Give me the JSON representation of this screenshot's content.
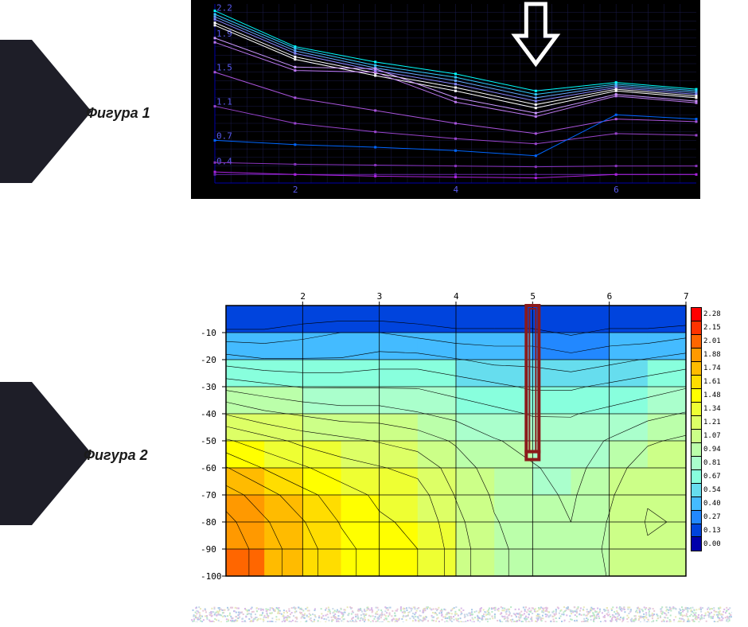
{
  "figure1": {
    "label": "Фигура 1",
    "type": "line",
    "background_color": "#000000",
    "grid_color": "#1a1a4a",
    "axis_color": "#0000aa",
    "text_color": "#5a5af0",
    "xlim": [
      1,
      7
    ],
    "x_ticks": [
      2,
      4,
      6
    ],
    "y_ticks_labels": [
      "0.4",
      "0.7",
      "1.1",
      "1.5",
      "1.9",
      "2.2"
    ],
    "y_ticks_values": [
      0.4,
      0.7,
      1.1,
      1.5,
      1.9,
      2.2
    ],
    "ylim": [
      0.2,
      2.3
    ],
    "arrow_marker_x": 5,
    "series_colors": [
      "#00ffff",
      "#33ccff",
      "#66aaff",
      "#8888ff",
      "#ffffff",
      "#ffffff",
      "#cc99ff",
      "#bb77ee",
      "#aa55dd",
      "#9944cc",
      "#8833bb",
      "#6622aa",
      "#0066ff",
      "#aa22dd"
    ],
    "series": [
      [
        2.22,
        1.8,
        1.62,
        1.48,
        1.28,
        1.38,
        1.3
      ],
      [
        2.18,
        1.78,
        1.58,
        1.44,
        1.24,
        1.36,
        1.28
      ],
      [
        2.15,
        1.75,
        1.55,
        1.4,
        1.2,
        1.34,
        1.26
      ],
      [
        2.12,
        1.72,
        1.52,
        1.36,
        1.16,
        1.32,
        1.24
      ],
      [
        2.08,
        1.68,
        1.49,
        1.32,
        1.12,
        1.3,
        1.22
      ],
      [
        2.05,
        1.65,
        1.46,
        1.28,
        1.08,
        1.28,
        1.2
      ],
      [
        1.9,
        1.56,
        1.54,
        1.2,
        1.02,
        1.24,
        1.16
      ],
      [
        1.85,
        1.52,
        1.5,
        1.15,
        0.98,
        1.22,
        1.14
      ],
      [
        1.5,
        1.2,
        1.05,
        0.9,
        0.78,
        0.95,
        0.92
      ],
      [
        1.1,
        0.9,
        0.8,
        0.72,
        0.66,
        0.78,
        0.76
      ],
      [
        0.44,
        0.42,
        0.41,
        0.4,
        0.39,
        0.4,
        0.4
      ],
      [
        0.3,
        0.3,
        0.3,
        0.3,
        0.3,
        0.3,
        0.3
      ],
      [
        0.7,
        0.65,
        0.62,
        0.58,
        0.52,
        1.0,
        0.95
      ],
      [
        0.33,
        0.3,
        0.28,
        0.27,
        0.26,
        0.3,
        0.3
      ]
    ]
  },
  "figure2": {
    "label": "Фигура 2",
    "type": "heatmap",
    "background_color": "#ffffff",
    "grid_color": "#000000",
    "xlim": [
      1,
      7
    ],
    "ylim": [
      -100,
      0
    ],
    "x_ticks": [
      2,
      3,
      4,
      5,
      6,
      7
    ],
    "y_ticks": [
      -10,
      -20,
      -30,
      -40,
      -50,
      -60,
      -70,
      -80,
      -90,
      -100
    ],
    "marker_rect_x": 5,
    "marker_rect_y1": 0,
    "marker_rect_y2": -54,
    "marker_color": "#8b1a1a",
    "legend_values": [
      2.28,
      2.15,
      2.01,
      1.88,
      1.74,
      1.61,
      1.48,
      1.34,
      1.21,
      1.07,
      0.94,
      0.81,
      0.67,
      0.54,
      0.4,
      0.27,
      0.13,
      0.0
    ],
    "legend_colors": [
      "#ff0000",
      "#ff3300",
      "#ff6600",
      "#ff9900",
      "#ffbb00",
      "#ffdd00",
      "#ffff00",
      "#eeff33",
      "#ddff66",
      "#ccff88",
      "#bbffaa",
      "#aaffcc",
      "#88ffdd",
      "#66ddee",
      "#44bbff",
      "#2288ff",
      "#0044dd",
      "#0000aa"
    ],
    "grid": [
      [
        0.05,
        0.05,
        0.1,
        0.1,
        0.1,
        0.1,
        0.1,
        0.1,
        0.1,
        0.1,
        0.1,
        0.1,
        0.05
      ],
      [
        0.3,
        0.3,
        0.35,
        0.4,
        0.4,
        0.35,
        0.3,
        0.3,
        0.3,
        0.25,
        0.3,
        0.3,
        0.35
      ],
      [
        0.6,
        0.55,
        0.55,
        0.55,
        0.6,
        0.6,
        0.55,
        0.5,
        0.5,
        0.45,
        0.5,
        0.55,
        0.6
      ],
      [
        0.9,
        0.85,
        0.8,
        0.8,
        0.8,
        0.8,
        0.75,
        0.7,
        0.65,
        0.65,
        0.7,
        0.75,
        0.8
      ],
      [
        1.2,
        1.1,
        1.05,
        1.0,
        1.0,
        0.95,
        0.9,
        0.85,
        0.8,
        0.8,
        0.85,
        0.9,
        0.95
      ],
      [
        1.5,
        1.4,
        1.3,
        1.25,
        1.2,
        1.15,
        1.05,
        0.95,
        0.9,
        0.88,
        0.95,
        1.05,
        1.1
      ],
      [
        1.75,
        1.6,
        1.5,
        1.4,
        1.35,
        1.3,
        1.15,
        1.0,
        0.95,
        0.9,
        1.0,
        1.15,
        1.15
      ],
      [
        1.95,
        1.8,
        1.65,
        1.55,
        1.45,
        1.4,
        1.2,
        1.05,
        0.98,
        0.92,
        1.05,
        1.2,
        1.18
      ],
      [
        2.05,
        1.9,
        1.75,
        1.6,
        1.5,
        1.45,
        1.25,
        1.08,
        1.0,
        0.94,
        1.08,
        1.22,
        1.2
      ],
      [
        2.1,
        1.95,
        1.8,
        1.65,
        1.55,
        1.48,
        1.28,
        1.1,
        1.02,
        0.95,
        1.1,
        1.2,
        1.18
      ],
      [
        2.1,
        1.95,
        1.8,
        1.65,
        1.55,
        1.48,
        1.28,
        1.1,
        1.02,
        0.95,
        1.08,
        1.15,
        1.15
      ]
    ]
  }
}
